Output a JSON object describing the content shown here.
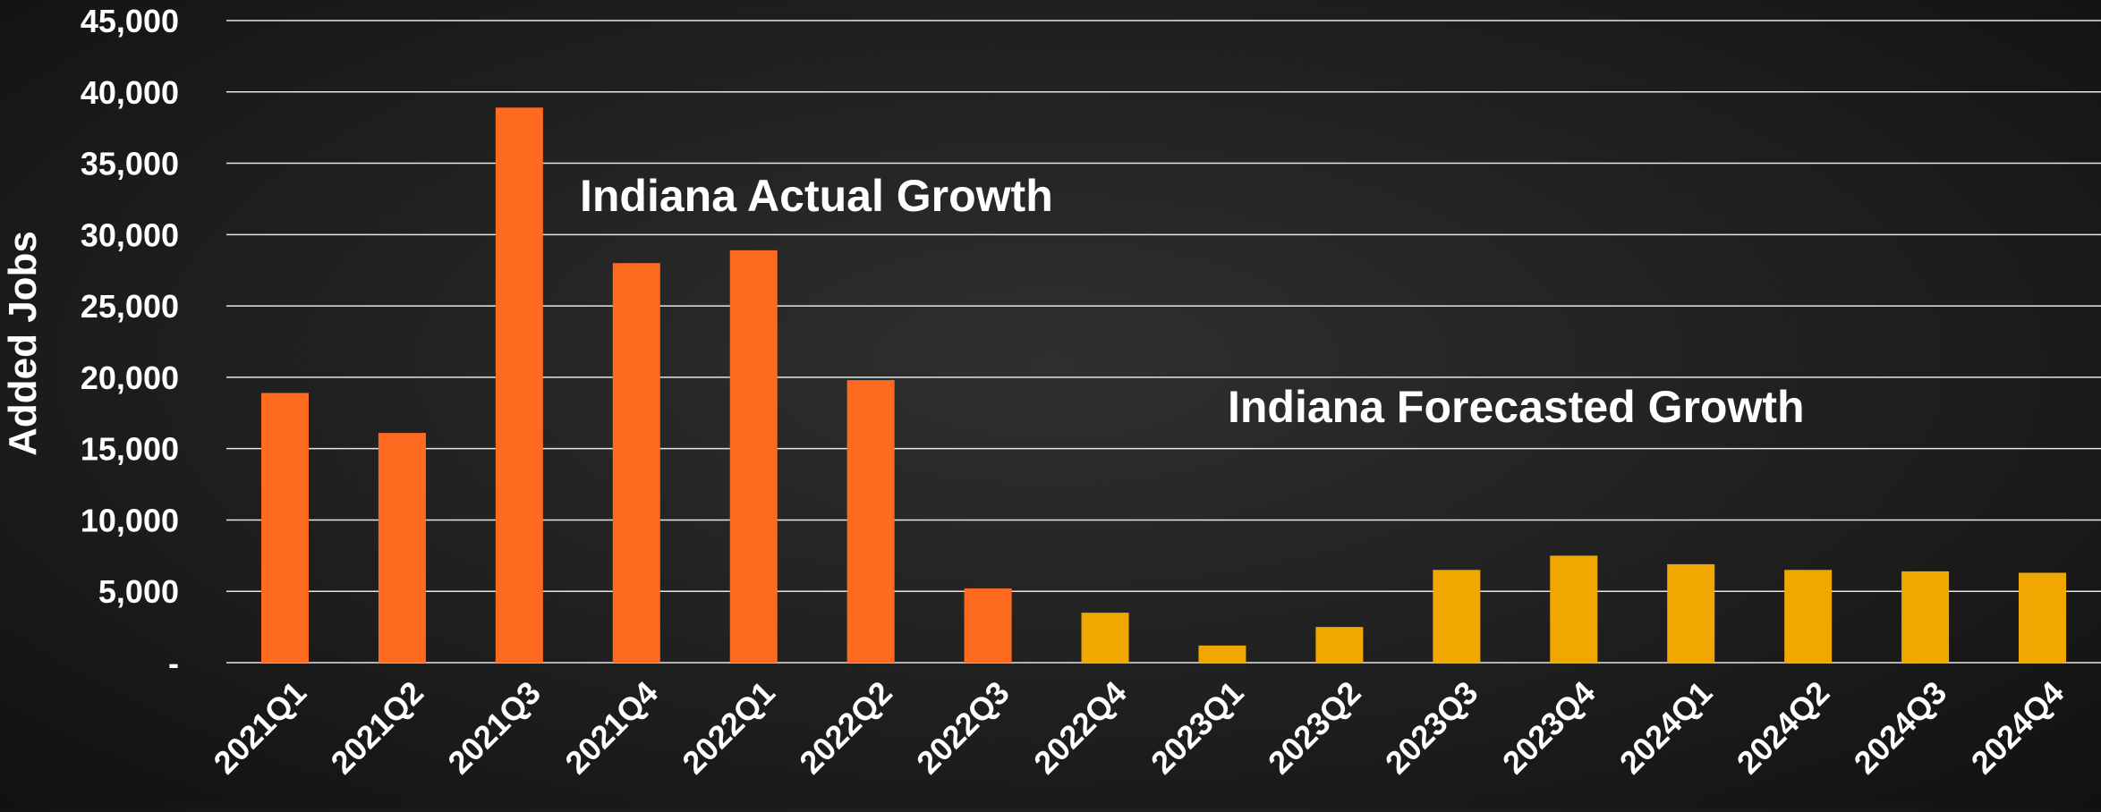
{
  "chart_data": {
    "type": "bar",
    "title": "",
    "xlabel": "",
    "ylabel": "Added Jobs",
    "ylim": [
      0,
      45000
    ],
    "grid": true,
    "yticks": [
      0,
      5000,
      10000,
      15000,
      20000,
      25000,
      30000,
      35000,
      40000,
      45000
    ],
    "ytick_labels": [
      "-",
      "5,000",
      "10,000",
      "15,000",
      "20,000",
      "25,000",
      "30,000",
      "35,000",
      "40,000",
      "45,000"
    ],
    "categories": [
      "2021Q1",
      "2021Q2",
      "2021Q3",
      "2021Q4",
      "2022Q1",
      "2022Q2",
      "2022Q3",
      "2022Q4",
      "2023Q1",
      "2023Q2",
      "2023Q3",
      "2023Q4",
      "2024Q1",
      "2024Q2",
      "2024Q3",
      "2024Q4"
    ],
    "values": [
      18900,
      16100,
      38900,
      28000,
      28900,
      19800,
      5200,
      3500,
      1200,
      2500,
      6500,
      7500,
      6900,
      6500,
      6400,
      6300
    ],
    "bar_types": [
      "actual",
      "actual",
      "actual",
      "actual",
      "actual",
      "actual",
      "actual",
      "forecast",
      "forecast",
      "forecast",
      "forecast",
      "forecast",
      "forecast",
      "forecast",
      "forecast",
      "forecast"
    ],
    "colors": {
      "actual": "#ff6a21",
      "forecast": "#f0a800",
      "gridline": "#e6e6e6",
      "text": "#ffffff"
    },
    "annotations": [
      {
        "text": "Indiana Actual Growth",
        "group": "actual"
      },
      {
        "text": "Indiana Forecasted Growth",
        "group": "forecast"
      }
    ]
  }
}
